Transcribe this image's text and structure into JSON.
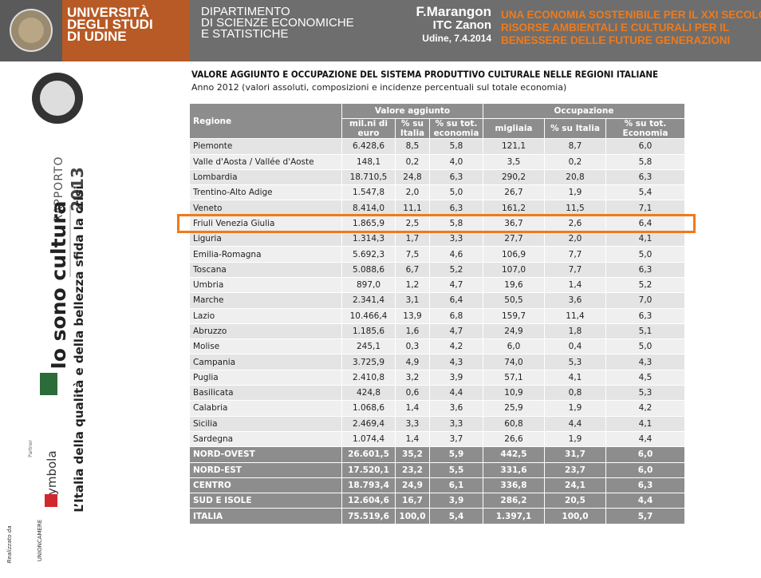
{
  "header": {
    "university": [
      "UNIVERSITÀ",
      "DEGLI STUDI",
      "DI UDINE"
    ],
    "department": [
      "DIPARTIMENTO",
      "DI SCIENZE ECONOMICHE",
      "E STATISTICHE"
    ],
    "author": "F.Marangon",
    "school": "ITC Zanon",
    "place_date": "Udine, 7.4.2014",
    "conference": [
      "UNA ECONOMIA SOSTENIBILE PER IL XXI SECOLO",
      "RISORSE AMBIENTALI E CULTURALI PER IL",
      "BENESSERE DELLE FUTURE GENERAZIONI"
    ]
  },
  "sidebar": {
    "report_label": "RAPPORTO",
    "report_year": "2013",
    "title": "Io sono cultura",
    "subtitle": "L’Italia della qualità e della bellezza sfida la crisi",
    "partner": "Partner",
    "brand": "Symbola",
    "realized_by": "Realizzato da",
    "unioncamere": "UNIONCAMERE"
  },
  "table": {
    "title": "VALORE AGGIUNTO E OCCUPAZIONE DEL SISTEMA PRODUTTIVO CULTURALE NELLE REGIONI ITALIANE",
    "subtitle": "Anno 2012 (valori assoluti, composizioni e incidenze percentuali sul totale economia)",
    "groups": [
      "Valore aggiunto",
      "Occupazione"
    ],
    "columns": [
      "Regione",
      "mil.ni di euro",
      "% su Italia",
      "% su tot. economia",
      "migliaia",
      "% su Italia",
      "% su tot. Economia"
    ],
    "rows": [
      [
        "Piemonte",
        "6.428,6",
        "8,5",
        "5,8",
        "121,1",
        "8,7",
        "6,0"
      ],
      [
        "Valle d'Aosta / Vallée d'Aoste",
        "148,1",
        "0,2",
        "4,0",
        "3,5",
        "0,2",
        "5,8"
      ],
      [
        "Lombardia",
        "18.710,5",
        "24,8",
        "6,3",
        "290,2",
        "20,8",
        "6,3"
      ],
      [
        "Trentino-Alto Adige",
        "1.547,8",
        "2,0",
        "5,0",
        "26,7",
        "1,9",
        "5,4"
      ],
      [
        "Veneto",
        "8.414,0",
        "11,1",
        "6,3",
        "161,2",
        "11,5",
        "7,1"
      ],
      [
        "Friuli Venezia Giulia",
        "1.865,9",
        "2,5",
        "5,8",
        "36,7",
        "2,6",
        "6,4"
      ],
      [
        "Liguria",
        "1.314,3",
        "1,7",
        "3,3",
        "27,7",
        "2,0",
        "4,1"
      ],
      [
        "Emilia-Romagna",
        "5.692,3",
        "7,5",
        "4,6",
        "106,9",
        "7,7",
        "5,0"
      ],
      [
        "Toscana",
        "5.088,6",
        "6,7",
        "5,2",
        "107,0",
        "7,7",
        "6,3"
      ],
      [
        "Umbria",
        "897,0",
        "1,2",
        "4,7",
        "19,6",
        "1,4",
        "5,2"
      ],
      [
        "Marche",
        "2.341,4",
        "3,1",
        "6,4",
        "50,5",
        "3,6",
        "7,0"
      ],
      [
        "Lazio",
        "10.466,4",
        "13,9",
        "6,8",
        "159,7",
        "11,4",
        "6,3"
      ],
      [
        "Abruzzo",
        "1.185,6",
        "1,6",
        "4,7",
        "24,9",
        "1,8",
        "5,1"
      ],
      [
        "Molise",
        "245,1",
        "0,3",
        "4,2",
        "6,0",
        "0,4",
        "5,0"
      ],
      [
        "Campania",
        "3.725,9",
        "4,9",
        "4,3",
        "74,0",
        "5,3",
        "4,3"
      ],
      [
        "Puglia",
        "2.410,8",
        "3,2",
        "3,9",
        "57,1",
        "4,1",
        "4,5"
      ],
      [
        "Basilicata",
        "424,8",
        "0,6",
        "4,4",
        "10,9",
        "0,8",
        "5,3"
      ],
      [
        "Calabria",
        "1.068,6",
        "1,4",
        "3,6",
        "25,9",
        "1,9",
        "4,2"
      ],
      [
        "Sicilia",
        "2.469,4",
        "3,3",
        "3,3",
        "60,8",
        "4,4",
        "4,1"
      ],
      [
        "Sardegna",
        "1.074,4",
        "1,4",
        "3,7",
        "26,6",
        "1,9",
        "4,4"
      ]
    ],
    "aggregates": [
      [
        "NORD-OVEST",
        "26.601,5",
        "35,2",
        "5,9",
        "442,5",
        "31,7",
        "6,0"
      ],
      [
        "NORD-EST",
        "17.520,1",
        "23,2",
        "5,5",
        "331,6",
        "23,7",
        "6,0"
      ],
      [
        "CENTRO",
        "18.793,4",
        "24,9",
        "6,1",
        "336,8",
        "24,1",
        "6,3"
      ],
      [
        "SUD E ISOLE",
        "12.604,6",
        "16,7",
        "3,9",
        "286,2",
        "20,5",
        "4,4"
      ],
      [
        "ITALIA",
        "75.519,6",
        "100,0",
        "5,4",
        "1.397,1",
        "100,0",
        "5,7"
      ]
    ],
    "highlighted_row": 5
  }
}
